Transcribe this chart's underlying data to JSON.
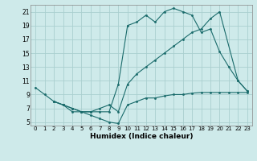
{
  "xlabel": "Humidex (Indice chaleur)",
  "bg_color": "#ceeaea",
  "grid_color": "#aacfcf",
  "line_color": "#1a6b6b",
  "xlim": [
    -0.5,
    23.5
  ],
  "ylim": [
    4.5,
    22
  ],
  "xticks": [
    0,
    1,
    2,
    3,
    4,
    5,
    6,
    7,
    8,
    9,
    10,
    11,
    12,
    13,
    14,
    15,
    16,
    17,
    18,
    19,
    20,
    21,
    22,
    23
  ],
  "yticks": [
    5,
    7,
    9,
    11,
    13,
    15,
    17,
    19,
    21
  ],
  "line1_x": [
    0,
    1,
    2,
    3,
    4,
    5,
    6,
    7,
    8,
    9,
    10,
    11,
    12,
    13,
    14,
    15,
    16,
    17,
    18,
    19,
    20,
    21,
    22,
    23
  ],
  "line1_y": [
    10,
    9,
    8,
    7.5,
    6.5,
    6.5,
    6.5,
    6.5,
    6.5,
    10.5,
    19,
    19.5,
    20.5,
    19.5,
    21,
    21.5,
    21,
    20.5,
    18,
    18.5,
    15.2,
    13,
    11,
    9.5
  ],
  "line2_x": [
    2,
    3,
    4,
    5,
    6,
    7,
    8,
    9,
    10,
    11,
    12,
    13,
    14,
    15,
    16,
    17,
    18,
    19,
    20,
    22,
    23
  ],
  "line2_y": [
    8,
    7.5,
    7,
    6.5,
    6.5,
    7,
    7.5,
    6.5,
    10.5,
    12,
    13,
    14,
    15,
    16,
    17,
    18,
    18.5,
    20,
    21,
    11,
    9.5
  ],
  "line3_x": [
    2,
    3,
    4,
    5,
    6,
    7,
    8,
    9,
    10,
    11,
    12,
    13,
    14,
    15,
    16,
    17,
    18,
    19,
    20,
    21,
    22,
    23
  ],
  "line3_y": [
    8,
    7.5,
    7,
    6.5,
    6,
    5.5,
    5,
    4.8,
    7.5,
    8,
    8.5,
    8.5,
    8.8,
    9,
    9,
    9.2,
    9.3,
    9.3,
    9.3,
    9.3,
    9.3,
    9.3
  ]
}
